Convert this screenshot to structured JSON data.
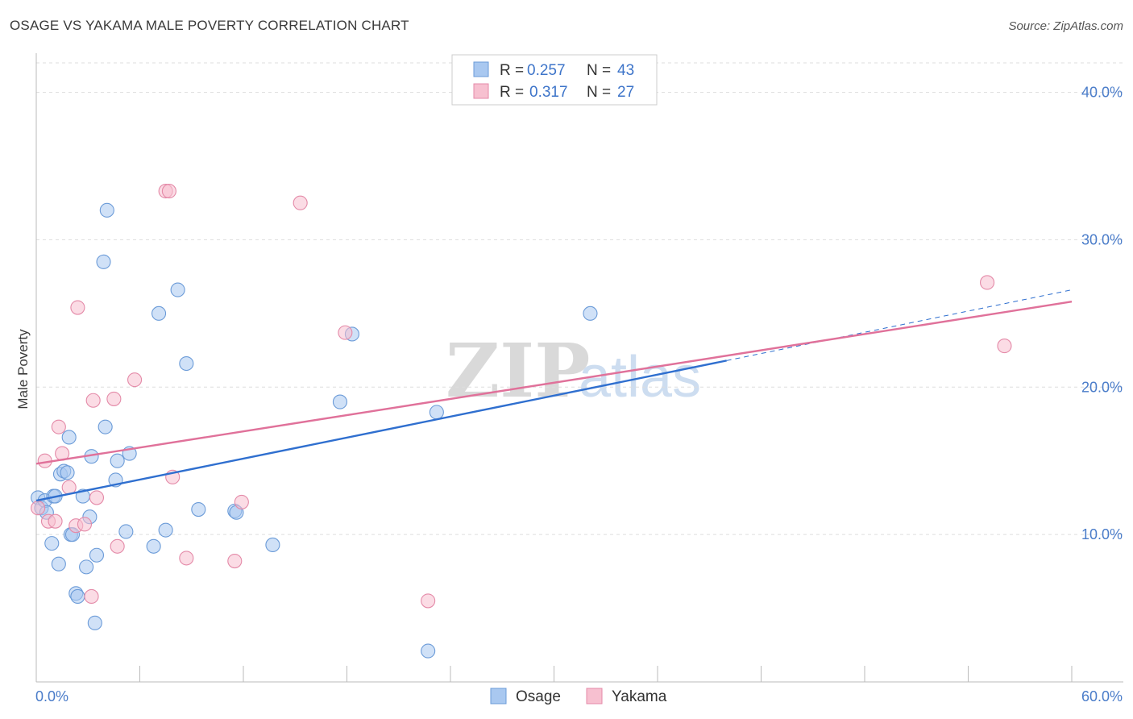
{
  "header": {
    "title": "OSAGE VS YAKAMA MALE POVERTY CORRELATION CHART",
    "source": "Source: ZipAtlas.com"
  },
  "colors": {
    "osage_fill": "#a9c8f0",
    "osage_stroke": "#6b9bd8",
    "osage_line": "#2f6fcf",
    "yakama_fill": "#f7c0d0",
    "yakama_stroke": "#e48aa8",
    "yakama_line": "#e0719a",
    "tick_text": "#4a7cc9"
  },
  "legend": {
    "rows": [
      {
        "r_label": "R =",
        "r_value": "0.257",
        "n_label": "N =",
        "n_value": "43"
      },
      {
        "r_label": "R =",
        "r_value": "0.317",
        "n_label": "N =",
        "n_value": "27"
      }
    ]
  },
  "watermark": {
    "zip": "ZIP",
    "atlas": "atlas"
  },
  "chart_data": {
    "type": "scatter",
    "title": "OSAGE VS YAKAMA MALE POVERTY CORRELATION CHART",
    "xlabel": "",
    "ylabel": "Male Poverty",
    "xlim": [
      0,
      60
    ],
    "ylim": [
      0,
      42
    ],
    "x_tick_labels": [
      "0.0%",
      "60.0%"
    ],
    "y_ticks": [
      10,
      20,
      30,
      40
    ],
    "y_tick_labels": [
      "10.0%",
      "20.0%",
      "30.0%",
      "40.0%"
    ],
    "grid": true,
    "legend_position": "top-center",
    "series": [
      {
        "name": "Osage",
        "r": 0.257,
        "n": 43,
        "points": [
          [
            0.1,
            12.5
          ],
          [
            0.3,
            11.8
          ],
          [
            0.5,
            12.3
          ],
          [
            0.6,
            11.5
          ],
          [
            0.9,
            9.4
          ],
          [
            1.0,
            12.6
          ],
          [
            1.1,
            12.6
          ],
          [
            1.3,
            8.0
          ],
          [
            1.4,
            14.1
          ],
          [
            1.6,
            14.3
          ],
          [
            1.8,
            14.2
          ],
          [
            1.9,
            16.6
          ],
          [
            2.0,
            10.0
          ],
          [
            2.1,
            10.0
          ],
          [
            2.3,
            6.0
          ],
          [
            2.4,
            5.8
          ],
          [
            2.7,
            12.6
          ],
          [
            2.9,
            7.8
          ],
          [
            3.1,
            11.2
          ],
          [
            3.2,
            15.3
          ],
          [
            3.5,
            8.6
          ],
          [
            3.4,
            4.0
          ],
          [
            3.9,
            28.5
          ],
          [
            4.1,
            32.0
          ],
          [
            4.0,
            17.3
          ],
          [
            4.6,
            13.7
          ],
          [
            4.7,
            15.0
          ],
          [
            5.2,
            10.2
          ],
          [
            5.4,
            15.5
          ],
          [
            6.8,
            9.2
          ],
          [
            7.1,
            25.0
          ],
          [
            7.5,
            10.3
          ],
          [
            8.2,
            26.6
          ],
          [
            8.7,
            21.6
          ],
          [
            9.4,
            11.7
          ],
          [
            11.5,
            11.6
          ],
          [
            11.6,
            11.5
          ],
          [
            13.7,
            9.3
          ],
          [
            17.6,
            19.0
          ],
          [
            18.3,
            23.6
          ],
          [
            22.7,
            2.1
          ],
          [
            23.2,
            18.3
          ],
          [
            32.1,
            25.0
          ]
        ],
        "trend": {
          "x0": 0,
          "y0": 12.3,
          "x1": 40,
          "y1": 21.8,
          "dash_x1": 60,
          "dash_y1": 26.6
        }
      },
      {
        "name": "Yakama",
        "r": 0.317,
        "n": 27,
        "points": [
          [
            0.1,
            11.8
          ],
          [
            0.5,
            15.0
          ],
          [
            0.7,
            10.9
          ],
          [
            1.1,
            10.9
          ],
          [
            1.3,
            17.3
          ],
          [
            1.5,
            15.5
          ],
          [
            1.9,
            13.2
          ],
          [
            2.3,
            10.6
          ],
          [
            2.4,
            25.4
          ],
          [
            2.8,
            10.7
          ],
          [
            3.2,
            5.8
          ],
          [
            3.3,
            19.1
          ],
          [
            3.5,
            12.5
          ],
          [
            4.5,
            19.2
          ],
          [
            4.7,
            9.2
          ],
          [
            5.7,
            20.5
          ],
          [
            7.5,
            33.3
          ],
          [
            7.7,
            33.3
          ],
          [
            7.9,
            13.9
          ],
          [
            8.7,
            8.4
          ],
          [
            11.5,
            8.2
          ],
          [
            11.9,
            12.2
          ],
          [
            15.3,
            32.5
          ],
          [
            17.9,
            23.7
          ],
          [
            22.7,
            5.5
          ],
          [
            55.1,
            27.1
          ],
          [
            56.1,
            22.8
          ]
        ],
        "trend": {
          "x0": 0,
          "y0": 14.8,
          "x1": 60,
          "y1": 25.8
        }
      }
    ]
  }
}
